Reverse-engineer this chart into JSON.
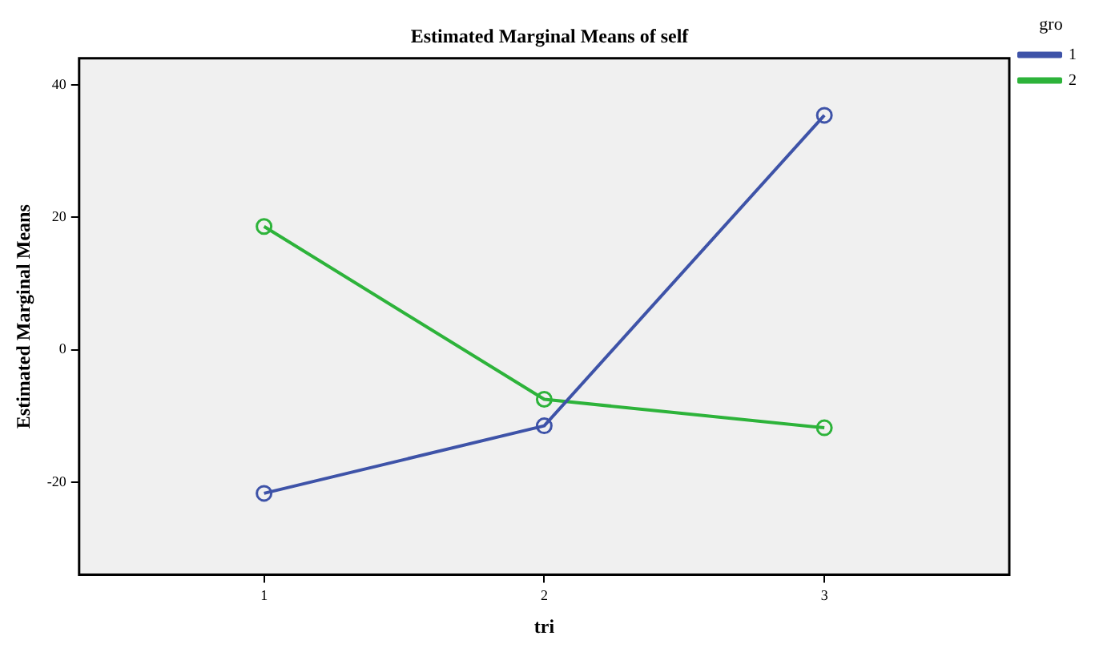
{
  "chart_data": {
    "type": "line",
    "title": "Estimated Marginal Means of self",
    "xlabel": "tri",
    "ylabel": "Estimated Marginal Means",
    "legend_title": "gro",
    "x": [
      1,
      2,
      3
    ],
    "xlim": [
      0.34,
      3.66
    ],
    "xticks": [
      1,
      2,
      3
    ],
    "ylim": [
      -34,
      44
    ],
    "yticks": [
      -20,
      0,
      20,
      40
    ],
    "series": [
      {
        "name": "1",
        "color": "#3e53a8",
        "values": [
          -21.7,
          -11.5,
          35.4
        ]
      },
      {
        "name": "2",
        "color": "#2db33a",
        "values": [
          18.6,
          -7.5,
          -11.8
        ]
      }
    ],
    "marker": "circle",
    "line_style": "solid",
    "grid": false,
    "legend": "top right"
  }
}
